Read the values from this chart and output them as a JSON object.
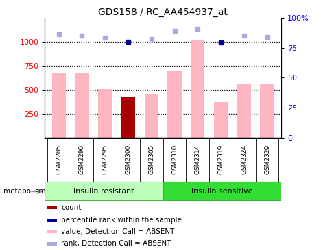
{
  "title": "GDS158 / RC_AA454937_at",
  "samples": [
    "GSM2285",
    "GSM2290",
    "GSM2295",
    "GSM2300",
    "GSM2305",
    "GSM2310",
    "GSM2314",
    "GSM2319",
    "GSM2324",
    "GSM2329"
  ],
  "group_labels": [
    "insulin resistant",
    "insulin sensitive"
  ],
  "value_absent": [
    670,
    680,
    510,
    0,
    460,
    700,
    1010,
    370,
    560,
    560
  ],
  "rank_absent": [
    1080,
    1060,
    1040,
    0,
    1030,
    1110,
    1130,
    0,
    1065,
    1050
  ],
  "count_value": [
    0,
    0,
    0,
    420,
    0,
    0,
    0,
    0,
    0,
    0
  ],
  "percentile_value": [
    0,
    0,
    0,
    1000,
    0,
    0,
    0,
    990,
    0,
    0
  ],
  "ylim_left": [
    0,
    1250
  ],
  "yticks_left": [
    250,
    500,
    750,
    1000
  ],
  "yticks_right": [
    0,
    25,
    50,
    75,
    100
  ],
  "color_value_absent": "#FFB6C1",
  "color_rank_absent": "#AAAADD",
  "color_count": "#AA0000",
  "color_percentile": "#000099",
  "bar_width": 0.6,
  "background_color": "#ffffff"
}
